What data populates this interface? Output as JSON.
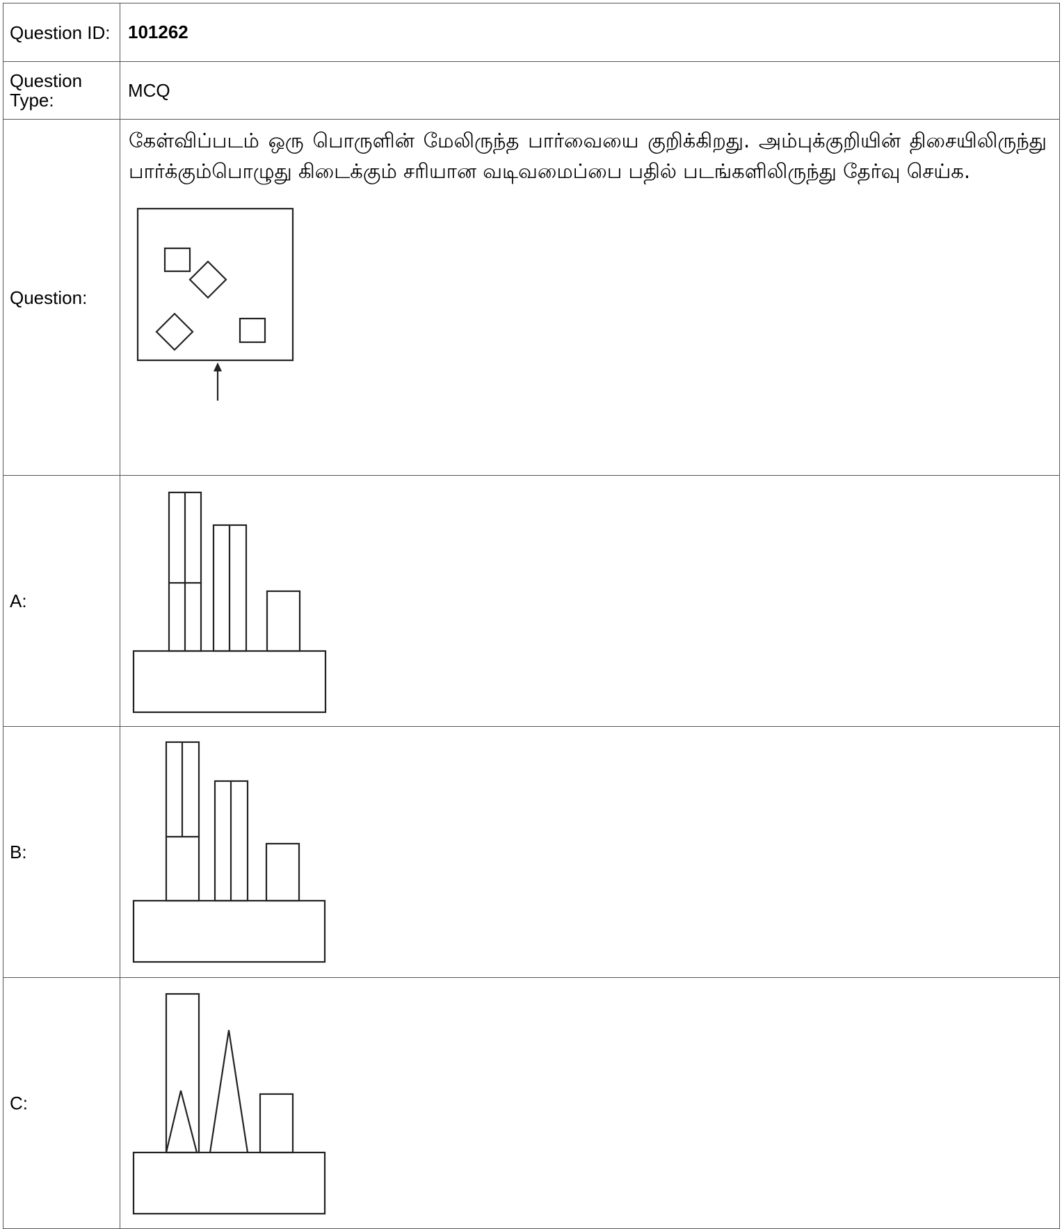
{
  "rows": {
    "question_id": {
      "label": "Question ID:",
      "value": "101262"
    },
    "question_type": {
      "label": "Question Type:",
      "value": "MCQ"
    },
    "question": {
      "label": "Question:",
      "text": "கேள்விப்படம் ஒரு பொருளின் மேலிருந்த பார்வையை குறிக்கிறது. அம்புக்குறியின் திசையிலிருந்து பார்க்கும்பொழுது கிடைக்கும் சரியான வடிவமைப்பை பதில் படங்களிலிருந்து தேர்வு செய்க."
    },
    "option_a": {
      "label": "A:"
    },
    "option_b": {
      "label": "B:"
    },
    "option_c": {
      "label": "C:"
    }
  }
}
